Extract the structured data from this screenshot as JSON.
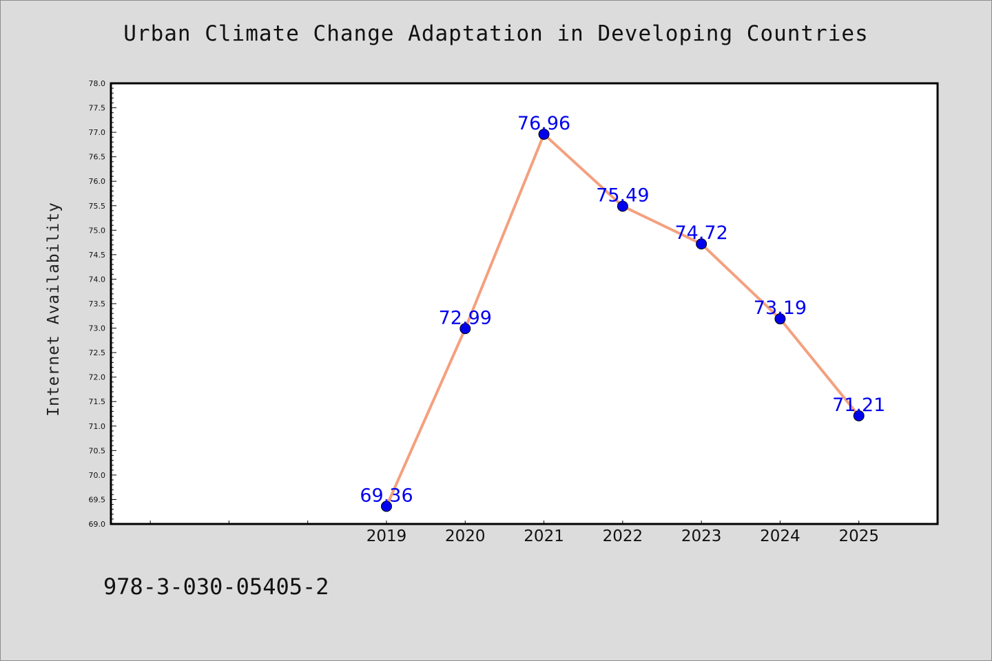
{
  "chart_data": {
    "type": "line",
    "title": "Urban Climate Change Adaptation in Developing Countries",
    "ylabel": "Internet Availability",
    "xlabel": "",
    "categories": [
      "2019",
      "2020",
      "2021",
      "2022",
      "2023",
      "2024",
      "2025"
    ],
    "values": [
      69.36,
      72.99,
      76.96,
      75.49,
      74.72,
      73.19,
      71.21
    ],
    "data_labels": [
      "69.36",
      "72.99",
      "76.96",
      "75.49",
      "74.72",
      "73.19",
      "71.21"
    ],
    "ylim": [
      69.0,
      78.0
    ],
    "y_ticks": [
      "69.0",
      "69.5",
      "70.0",
      "70.5",
      "71.0",
      "71.5",
      "72.0",
      "72.5",
      "73.0",
      "73.5",
      "74.0",
      "74.5",
      "75.0",
      "75.5",
      "76.0",
      "76.5",
      "77.0",
      "77.5",
      "78.0"
    ],
    "x_extra_empty_slots": 3,
    "grid": false,
    "legend": "none",
    "colors": {
      "line": "#f4a07f",
      "marker": "#0000ee",
      "label": "#0000ee",
      "plot_bg": "#ffffff",
      "figure_bg": "#dcdcdc"
    }
  },
  "footer": {
    "code": "978-3-030-05405-2"
  }
}
